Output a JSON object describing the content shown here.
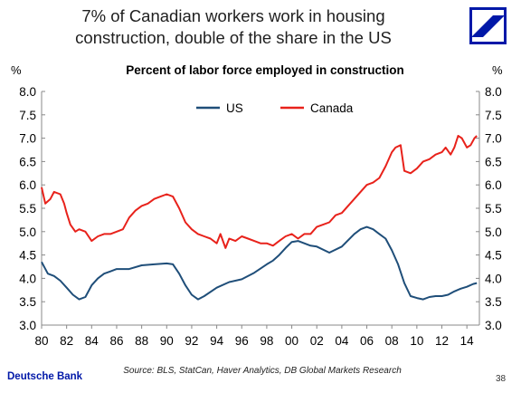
{
  "header": {
    "title_line1": "7% of Canadian workers work in housing",
    "title_line2": "construction, double of the share in the US"
  },
  "footer": {
    "brand": "Deutsche Bank",
    "page_number": "38"
  },
  "colors": {
    "us": "#1f4e79",
    "canada": "#e8221b",
    "brand_blue": "#0018a8"
  },
  "chart_data": {
    "type": "line",
    "title": "Percent of labor force employed in construction",
    "ylabel_left": "%",
    "ylabel_right": "%",
    "source": "Source: BLS, StatCan, Haver Analytics, DB Global Markets Research",
    "xlim": [
      1980,
      2015
    ],
    "ylim": [
      3.0,
      8.0
    ],
    "x_ticks": [
      1980,
      1982,
      1984,
      1986,
      1988,
      1990,
      1992,
      1994,
      1996,
      1998,
      2000,
      2002,
      2004,
      2006,
      2008,
      2010,
      2012,
      2014
    ],
    "x_tick_labels": [
      "80",
      "82",
      "84",
      "86",
      "88",
      "90",
      "92",
      "94",
      "96",
      "98",
      "00",
      "02",
      "04",
      "06",
      "08",
      "10",
      "12",
      "14"
    ],
    "y_ticks": [
      3.0,
      3.5,
      4.0,
      4.5,
      5.0,
      5.5,
      6.0,
      6.5,
      7.0,
      7.5,
      8.0
    ],
    "y_tick_labels": [
      "3.0",
      "3.5",
      "4.0",
      "4.5",
      "5.0",
      "5.5",
      "6.0",
      "6.5",
      "7.0",
      "7.5",
      "8.0"
    ],
    "grid": false,
    "legend_position": "top-center",
    "series": [
      {
        "name": "US",
        "x": [
          1980,
          1980.5,
          1981,
          1981.5,
          1982,
          1982.5,
          1983,
          1983.5,
          1984,
          1984.5,
          1985,
          1985.5,
          1986,
          1987,
          1988,
          1989,
          1990,
          1990.5,
          1991,
          1991.5,
          1992,
          1992.5,
          1993,
          1994,
          1995,
          1996,
          1997,
          1998,
          1998.5,
          1999,
          1999.5,
          2000,
          2000.5,
          2001,
          2001.5,
          2002,
          2003,
          2004,
          2005,
          2005.5,
          2006,
          2006.5,
          2007,
          2007.5,
          2008,
          2008.5,
          2009,
          2009.5,
          2010,
          2010.5,
          2011,
          2011.5,
          2012,
          2012.5,
          2013,
          2013.5,
          2014,
          2014.5,
          2014.8
        ],
        "values": [
          4.35,
          4.1,
          4.05,
          3.95,
          3.8,
          3.65,
          3.55,
          3.6,
          3.85,
          4.0,
          4.1,
          4.15,
          4.2,
          4.2,
          4.28,
          4.3,
          4.32,
          4.3,
          4.1,
          3.85,
          3.65,
          3.55,
          3.62,
          3.8,
          3.92,
          3.98,
          4.12,
          4.3,
          4.38,
          4.5,
          4.65,
          4.78,
          4.8,
          4.75,
          4.7,
          4.68,
          4.55,
          4.68,
          4.95,
          5.05,
          5.1,
          5.05,
          4.95,
          4.85,
          4.6,
          4.3,
          3.9,
          3.62,
          3.58,
          3.55,
          3.6,
          3.62,
          3.62,
          3.65,
          3.72,
          3.78,
          3.82,
          3.88,
          3.9
        ]
      },
      {
        "name": "Canada",
        "x": [
          1980,
          1980.3,
          1980.7,
          1981,
          1981.5,
          1981.8,
          1982,
          1982.3,
          1982.7,
          1983,
          1983.5,
          1984,
          1984.5,
          1985,
          1985.5,
          1986,
          1986.5,
          1987,
          1987.5,
          1988,
          1988.5,
          1989,
          1989.5,
          1990,
          1990.5,
          1991,
          1991.5,
          1992,
          1992.5,
          1993,
          1993.5,
          1994,
          1994.3,
          1994.7,
          1995,
          1995.5,
          1996,
          1996.5,
          1997,
          1997.5,
          1998,
          1998.5,
          1999,
          1999.5,
          2000,
          2000.5,
          2001,
          2001.5,
          2002,
          2002.5,
          2003,
          2003.5,
          2004,
          2004.5,
          2005,
          2005.5,
          2006,
          2006.5,
          2007,
          2007.5,
          2008,
          2008.3,
          2008.7,
          2009,
          2009.5,
          2010,
          2010.5,
          2011,
          2011.5,
          2012,
          2012.3,
          2012.7,
          2013,
          2013.3,
          2013.6,
          2014,
          2014.3,
          2014.6,
          2014.8
        ],
        "values": [
          5.95,
          5.6,
          5.7,
          5.85,
          5.8,
          5.6,
          5.4,
          5.15,
          5.0,
          5.05,
          5.0,
          4.8,
          4.9,
          4.95,
          4.95,
          5.0,
          5.05,
          5.3,
          5.45,
          5.55,
          5.6,
          5.7,
          5.75,
          5.8,
          5.75,
          5.5,
          5.2,
          5.05,
          4.95,
          4.9,
          4.85,
          4.75,
          4.95,
          4.65,
          4.85,
          4.8,
          4.9,
          4.85,
          4.8,
          4.75,
          4.75,
          4.7,
          4.8,
          4.9,
          4.95,
          4.85,
          4.95,
          4.95,
          5.1,
          5.15,
          5.2,
          5.35,
          5.4,
          5.55,
          5.7,
          5.85,
          6.0,
          6.05,
          6.15,
          6.4,
          6.7,
          6.8,
          6.85,
          6.3,
          6.25,
          6.35,
          6.5,
          6.55,
          6.65,
          6.7,
          6.8,
          6.65,
          6.8,
          7.05,
          7.0,
          6.8,
          6.85,
          7.0,
          7.05
        ]
      }
    ]
  }
}
